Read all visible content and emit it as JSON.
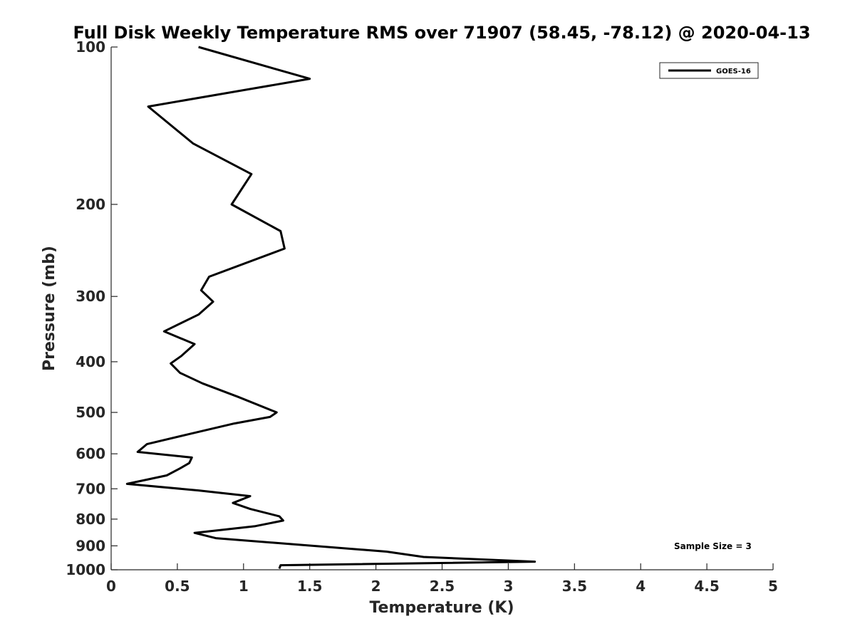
{
  "chart_data": {
    "type": "line",
    "title": "Full Disk Weekly Temperature RMS over 71907 (58.45, -78.12) @ 2020-04-13",
    "xlabel": "Temperature (K)",
    "ylabel": "Pressure (mb)",
    "xlim": [
      0,
      5
    ],
    "ylim": [
      1000,
      100
    ],
    "y_scale": "log",
    "y_reversed": true,
    "x_ticks": [
      "0",
      "0.5",
      "1",
      "1.5",
      "2",
      "2.5",
      "3",
      "3.5",
      "4",
      "4.5",
      "5"
    ],
    "y_ticks": [
      "100",
      "200",
      "300",
      "400",
      "500",
      "600",
      "700",
      "800",
      "900",
      "1000"
    ],
    "grid": false,
    "legend_position": "top-right",
    "series": [
      {
        "name": "GOES-16",
        "color": "#000000",
        "x": [
          0.66,
          1.5,
          0.28,
          0.62,
          1.06,
          0.91,
          1.28,
          1.31,
          0.74,
          0.68,
          0.77,
          0.66,
          0.4,
          0.63,
          0.53,
          0.45,
          0.52,
          0.69,
          0.96,
          1.25,
          1.2,
          0.93,
          0.59,
          0.27,
          0.2,
          0.61,
          0.59,
          0.52,
          0.42,
          0.12,
          0.66,
          1.05,
          0.92,
          1.05,
          1.27,
          1.3,
          1.09,
          0.63,
          0.79,
          2.08,
          2.36,
          3.2,
          1.28,
          1.27
        ],
        "y": [
          100,
          115,
          130,
          153,
          175,
          200,
          225,
          243,
          275,
          292,
          307,
          325,
          350,
          370,
          390,
          403,
          420,
          440,
          467,
          500,
          510,
          525,
          550,
          575,
          595,
          610,
          625,
          640,
          660,
          685,
          705,
          723,
          745,
          765,
          790,
          805,
          825,
          850,
          870,
          923,
          945,
          965,
          980,
          995
        ]
      }
    ],
    "annotations": [
      "Sample Size = 3"
    ]
  }
}
